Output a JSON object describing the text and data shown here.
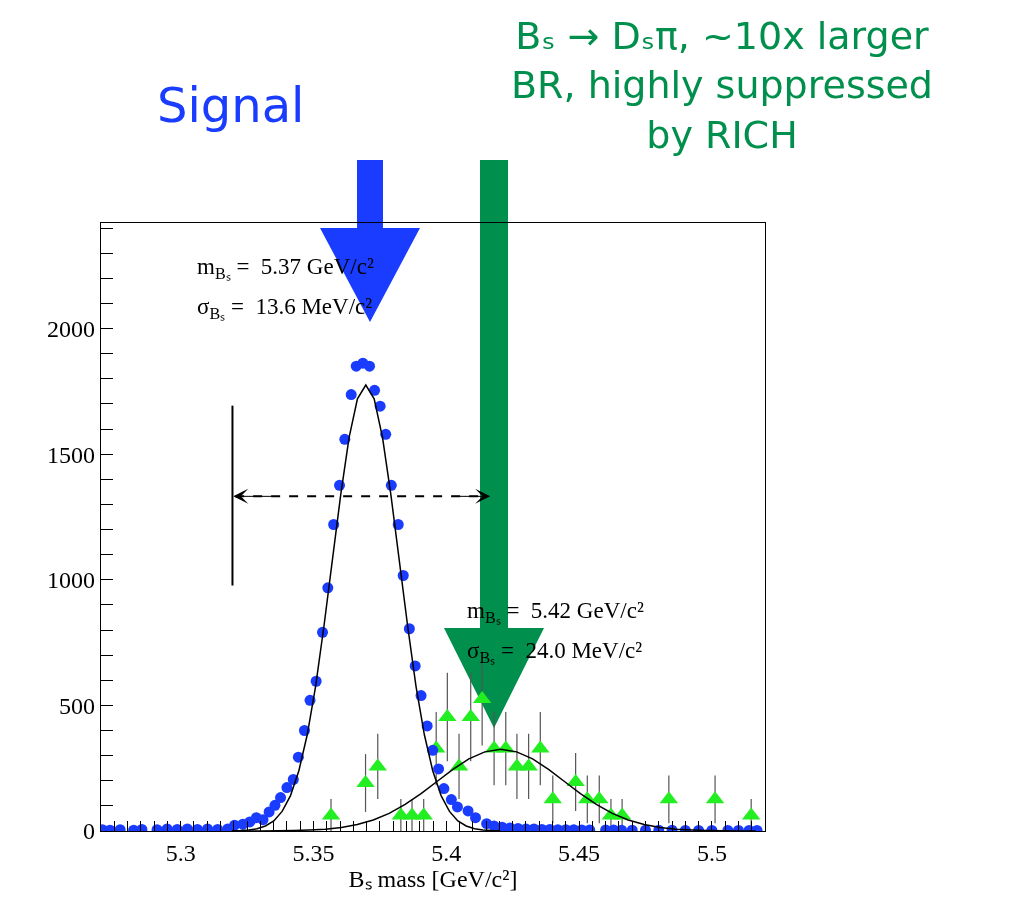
{
  "chart_data": {
    "type": "scatter",
    "xlabel": "Bₛ mass [GeV/c²]",
    "xlim": [
      5.27,
      5.52
    ],
    "xticks": [
      {
        "value": 5.27,
        "label": null
      },
      {
        "value": 5.275,
        "label": null
      },
      {
        "value": 5.28,
        "label": null
      },
      {
        "value": 5.285,
        "label": null
      },
      {
        "value": 5.29,
        "label": null
      },
      {
        "value": 5.295,
        "label": null
      },
      5.3,
      {
        "value": 5.305,
        "label": null
      },
      {
        "value": 5.31,
        "label": null
      },
      {
        "value": 5.315,
        "label": null
      },
      {
        "value": 5.32,
        "label": null
      },
      {
        "value": 5.325,
        "label": null
      },
      {
        "value": 5.33,
        "label": null
      },
      {
        "value": 5.335,
        "label": null
      },
      {
        "value": 5.34,
        "label": null
      },
      {
        "value": 5.345,
        "label": null
      },
      5.35,
      {
        "value": 5.355,
        "label": null
      },
      {
        "value": 5.36,
        "label": null
      },
      {
        "value": 5.365,
        "label": null
      },
      {
        "value": 5.37,
        "label": null
      },
      {
        "value": 5.375,
        "label": null
      },
      {
        "value": 5.38,
        "label": null
      },
      {
        "value": 5.385,
        "label": null
      },
      {
        "value": 5.39,
        "label": null
      },
      {
        "value": 5.395,
        "label": null
      },
      5.4,
      {
        "value": 5.405,
        "label": null
      },
      {
        "value": 5.41,
        "label": null
      },
      {
        "value": 5.415,
        "label": null
      },
      {
        "value": 5.42,
        "label": null
      },
      {
        "value": 5.425,
        "label": null
      },
      {
        "value": 5.43,
        "label": null
      },
      {
        "value": 5.435,
        "label": null
      },
      {
        "value": 5.44,
        "label": null
      },
      {
        "value": 5.445,
        "label": null
      },
      5.45,
      {
        "value": 5.455,
        "label": null
      },
      {
        "value": 5.46,
        "label": null
      },
      {
        "value": 5.465,
        "label": null
      },
      {
        "value": 5.47,
        "label": null
      },
      {
        "value": 5.475,
        "label": null
      },
      {
        "value": 5.48,
        "label": null
      },
      {
        "value": 5.485,
        "label": null
      },
      {
        "value": 5.49,
        "label": null
      },
      {
        "value": 5.495,
        "label": null
      },
      5.5,
      {
        "value": 5.505,
        "label": null
      },
      {
        "value": 5.51,
        "label": null
      },
      {
        "value": 5.515,
        "label": null
      }
    ],
    "ylim": [
      0,
      2420
    ],
    "yticks": [
      0,
      {
        "value": 100,
        "label": null
      },
      {
        "value": 200,
        "label": null
      },
      {
        "value": 300,
        "label": null
      },
      {
        "value": 400,
        "label": null
      },
      500,
      {
        "value": 600,
        "label": null
      },
      {
        "value": 700,
        "label": null
      },
      {
        "value": 800,
        "label": null
      },
      {
        "value": 900,
        "label": null
      },
      1000,
      {
        "value": 1100,
        "label": null
      },
      {
        "value": 1200,
        "label": null
      },
      {
        "value": 1300,
        "label": null
      },
      {
        "value": 1400,
        "label": null
      },
      1500,
      {
        "value": 1600,
        "label": null
      },
      {
        "value": 1700,
        "label": null
      },
      {
        "value": 1800,
        "label": null
      },
      {
        "value": 1900,
        "label": null
      },
      2000,
      {
        "value": 2100,
        "label": null
      },
      {
        "value": 2200,
        "label": null
      },
      {
        "value": 2300,
        "label": null
      },
      {
        "value": 2400,
        "label": null
      }
    ],
    "grid": false,
    "series": [
      {
        "marker": "triangle",
        "color": "#22ee22",
        "x": [
          5.3566,
          5.3696,
          5.3742,
          5.3829,
          5.3871,
          5.3915,
          5.3962,
          5.4004,
          5.4048,
          5.4092,
          5.4135,
          5.418,
          5.4224,
          5.4266,
          5.431,
          5.4354,
          5.4401,
          5.4487,
          5.4531,
          5.4576,
          5.462,
          5.4662,
          5.4838,
          5.5012,
          5.5148
        ],
        "values": [
          62,
          191,
          257,
          62,
          62,
          62,
          328,
          454,
          257,
          454,
          525,
          328,
          328,
          257,
          257,
          328,
          126,
          195,
          126,
          126,
          62,
          62,
          126,
          126,
          62
        ],
        "errors": [
          65,
          115,
          130,
          65,
          65,
          65,
          146,
          176,
          130,
          176,
          185,
          146,
          146,
          130,
          130,
          146,
          95,
          115,
          95,
          95,
          65,
          65,
          95,
          95,
          65
        ]
      },
      {
        "marker": "circle",
        "color": "#1a3cff",
        "x": [
          5.2705,
          5.2734,
          5.2772,
          5.2823,
          5.2854,
          5.2911,
          5.2949,
          5.2987,
          5.3025,
          5.3063,
          5.3101,
          5.3139,
          5.3177,
          5.3203,
          5.3234,
          5.326,
          5.3285,
          5.331,
          5.3333,
          5.3355,
          5.3376,
          5.34,
          5.3424,
          5.3443,
          5.3466,
          5.3487,
          5.351,
          5.3534,
          5.3554,
          5.3576,
          5.3598,
          5.3618,
          5.3642,
          5.3661,
          5.3686,
          5.3711,
          5.373,
          5.3751,
          5.3772,
          5.3793,
          5.3819,
          5.3838,
          5.3861,
          5.3883,
          5.3905,
          5.3928,
          5.3949,
          5.3971,
          5.3991,
          5.4019,
          5.4042,
          5.4082,
          5.411,
          5.4152,
          5.418,
          5.421,
          5.424,
          5.427,
          5.43,
          5.433,
          5.436,
          5.439,
          5.442,
          5.445,
          5.448,
          5.451,
          5.454,
          5.46,
          5.463,
          5.466,
          5.47,
          5.475,
          5.48,
          5.485,
          5.49,
          5.495,
          5.5,
          5.506,
          5.51,
          5.514,
          5.517
        ],
        "values": [
          5,
          3,
          5,
          3,
          6,
          5,
          8,
          6,
          8,
          6,
          8,
          6,
          8,
          23,
          27,
          36,
          53,
          45,
          76,
          102,
          133,
          173,
          205,
          294,
          400,
          520,
          596,
          791,
          968,
          1220,
          1376,
          1559,
          1737,
          1850,
          1862,
          1850,
          1754,
          1691,
          1579,
          1376,
          1220,
          1017,
          805,
          657,
          539,
          418,
          321,
          247,
          169,
          125,
          96,
          80,
          53,
          29,
          20,
          15,
          12,
          10,
          8,
          8,
          6,
          6,
          5,
          5,
          5,
          4,
          4,
          4,
          4,
          3,
          3,
          3,
          3,
          3,
          2,
          2,
          2,
          2,
          2,
          2,
          2
        ]
      },
      {
        "type": "line",
        "marker": "none",
        "line_style": "solid",
        "color": "#000000",
        "x": [
          5.3193,
          5.32245,
          5.3256,
          5.32875,
          5.3319,
          5.33505,
          5.3382,
          5.34135,
          5.3445,
          5.34765,
          5.3508,
          5.35395,
          5.3571,
          5.36025,
          5.3634,
          5.36655,
          5.3697,
          5.37285,
          5.376,
          5.37915,
          5.3823,
          5.38545,
          5.3886,
          5.39175,
          5.3949,
          5.39805,
          5.4012,
          5.40435,
          5.4075,
          5.41065,
          5.4138,
          5.41695,
          5.4201
        ],
        "values": [
          1,
          2,
          4,
          9,
          20,
          40,
          78,
          141,
          240,
          383,
          576,
          816,
          1077,
          1338,
          1566,
          1720,
          1775,
          1720,
          1566,
          1338,
          1077,
          816,
          576,
          383,
          240,
          141,
          78,
          40,
          20,
          9,
          4,
          2,
          1
        ]
      },
      {
        "type": "line",
        "marker": "none",
        "line_style": "solid",
        "color": "#000000",
        "x": [
          5.3245,
          5.3305,
          5.3365,
          5.3425,
          5.3485,
          5.3545,
          5.3605,
          5.3665,
          5.3725,
          5.3785,
          5.3845,
          5.3905,
          5.3965,
          5.4025,
          5.4085,
          5.4145,
          5.4205,
          5.4265,
          5.4325,
          5.4385,
          5.4445,
          5.4505,
          5.4565,
          5.4625,
          5.4685,
          5.4745,
          5.4805,
          5.4865,
          5.4925,
          5.4985,
          5.5045,
          5.5105,
          5.5165
        ],
        "values": [
          0,
          0,
          1,
          2,
          4,
          7,
          14,
          26,
          44,
          70,
          106,
          149,
          197,
          245,
          287,
          315,
          325,
          315,
          287,
          245,
          197,
          149,
          106,
          70,
          44,
          26,
          14,
          7,
          4,
          2,
          1,
          0,
          0
        ]
      }
    ],
    "annotations": [
      "Signal",
      "Bₛ → Dₛπ, ~10x larger\nBR, highly suppressed\nby RICH",
      "m$_{Bₛ}$ =  5.37 GeV/c²",
      "σ$_{Bₛ}$ =  13.6 MeV/c²",
      "m$_{Bₛ}$ =  5.42 GeV/c²",
      "σ$_{Bₛ}$ =  24.0 MeV/c²"
    ]
  }
}
